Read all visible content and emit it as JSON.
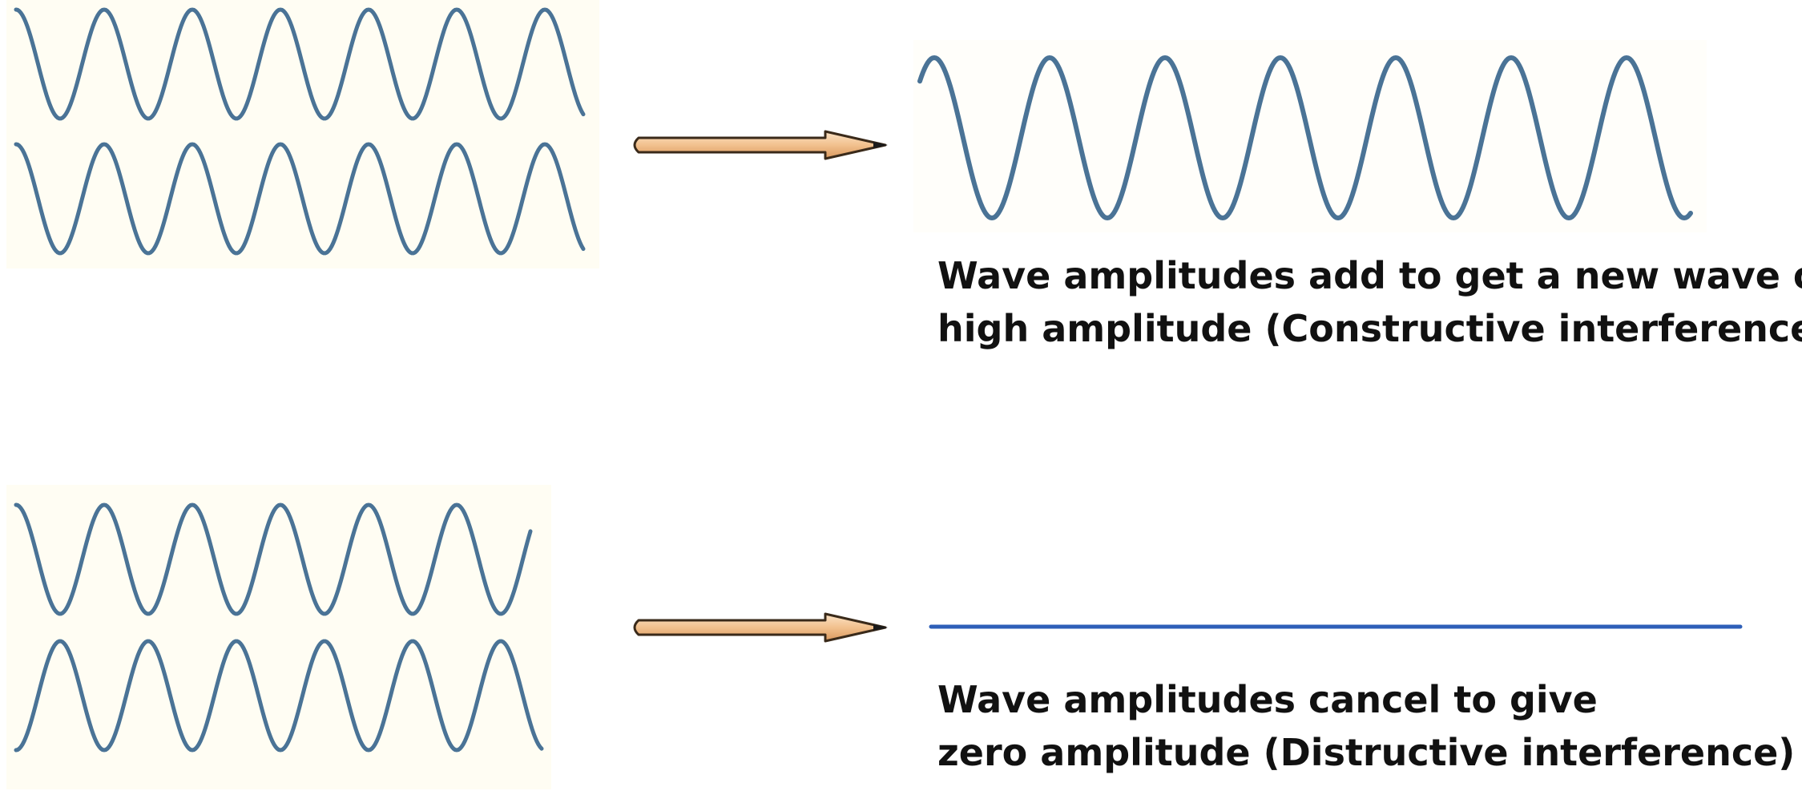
{
  "constructive": {
    "caption_line1": "Wave amplitudes add to get a new wave of",
    "caption_line2": "high amplitude (Constructive interference)",
    "input_wave_count": 2,
    "input_phase_relation": "in phase",
    "result": "high amplitude wave"
  },
  "destructive": {
    "caption_line1": "Wave amplitudes cancel to give",
    "caption_line2": "zero amplitude (Distructive interference)",
    "input_wave_count": 2,
    "input_phase_relation": "opposite phase",
    "result": "flat line"
  },
  "colors": {
    "wave": "#4a7396",
    "result_line": "#2e5fb8",
    "arrow_fill": "#f4c99a",
    "arrow_stroke": "#3a2a1a",
    "text": "#111111",
    "panel_tint": "#fffdf3"
  }
}
